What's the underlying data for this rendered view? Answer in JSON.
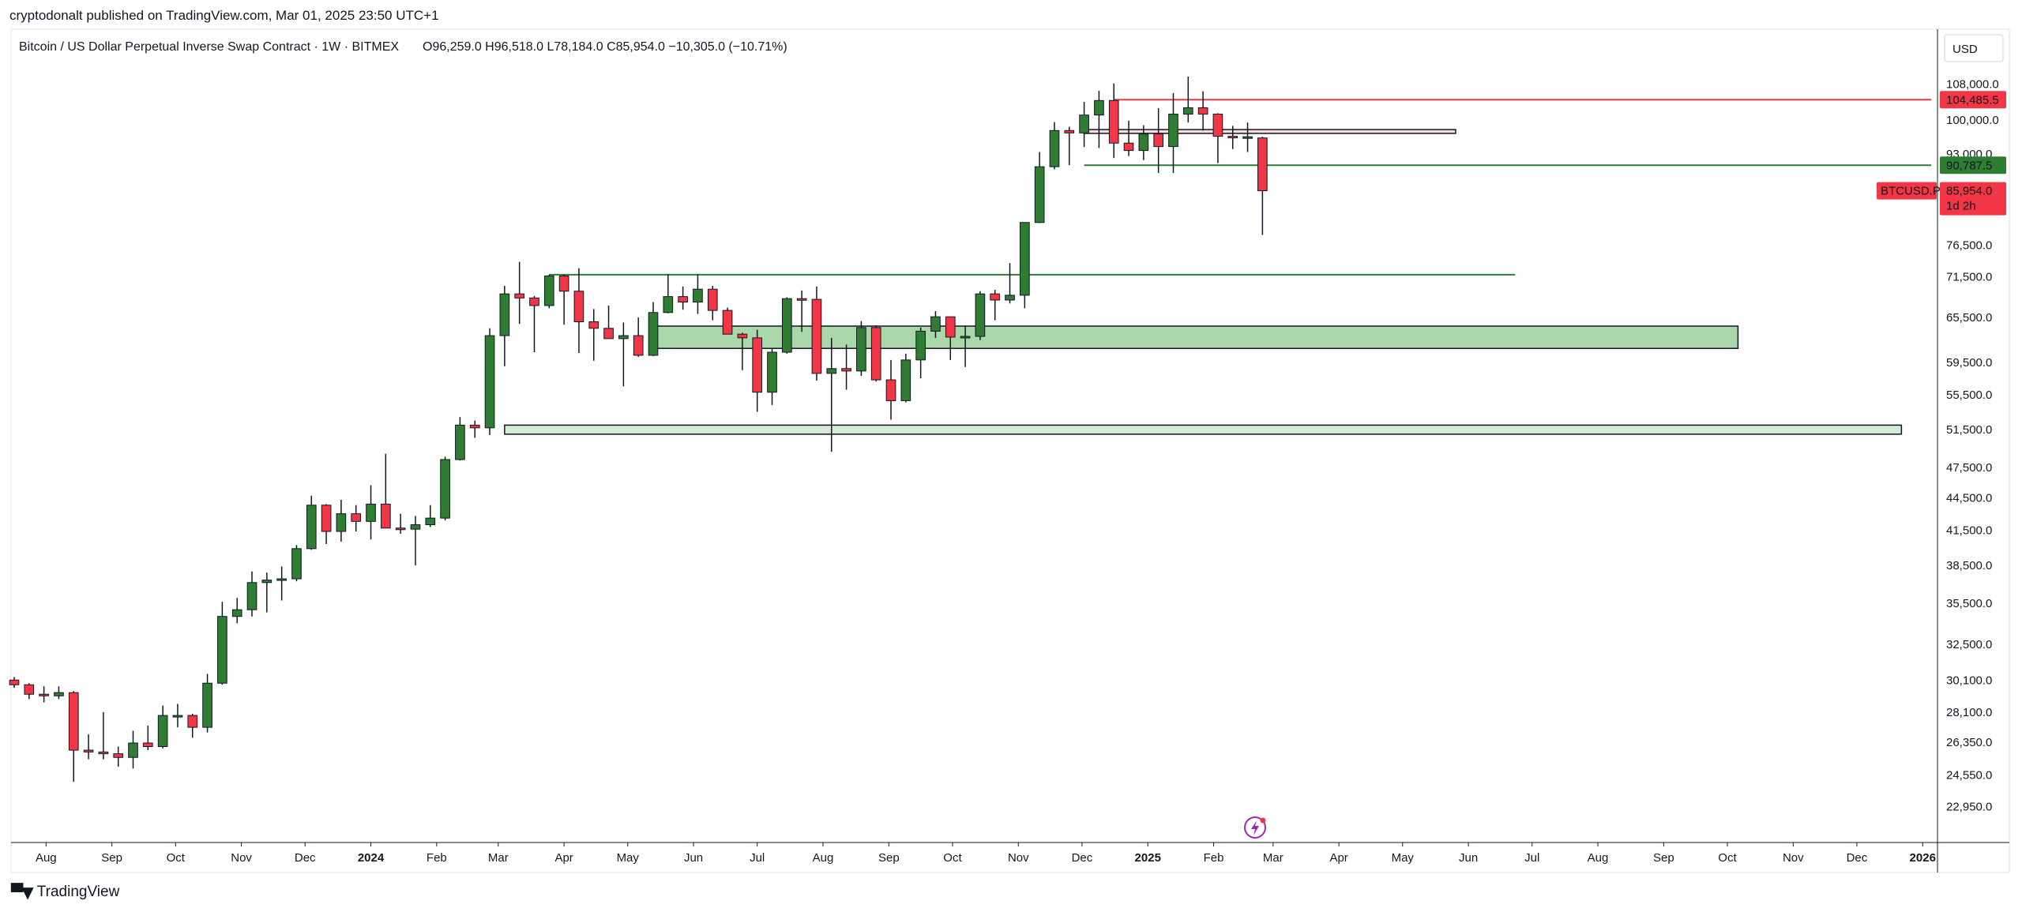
{
  "publish_line": "cryptodonalt published on TradingView.com, Mar 01, 2025 23:50 UTC+1",
  "footer": {
    "brand": "TradingView"
  },
  "chart_data": {
    "type": "candlestick",
    "legend": {
      "symbol": "Bitcoin / US Dollar Perpetual Inverse Swap Contract · 1W · BITMEX",
      "ohlc": "O96,259.0  H96,518.0  L78,184.0  C85,954.0  −10,305.0 (−10.71%)"
    },
    "currency": "USD",
    "y_scale": "log",
    "ylim": [
      21500,
      113000
    ],
    "y_ticks": [
      {
        "v": 108000,
        "label": "108,000.0"
      },
      {
        "v": 100000,
        "label": "100,000.0"
      },
      {
        "v": 93000,
        "label": "93,000.0"
      },
      {
        "v": 76500,
        "label": "76,500.0"
      },
      {
        "v": 71500,
        "label": "71,500.0"
      },
      {
        "v": 65500,
        "label": "65,500.0"
      },
      {
        "v": 59500,
        "label": "59,500.0"
      },
      {
        "v": 55500,
        "label": "55,500.0"
      },
      {
        "v": 51500,
        "label": "51,500.0"
      },
      {
        "v": 47500,
        "label": "47,500.0"
      },
      {
        "v": 44500,
        "label": "44,500.0"
      },
      {
        "v": 41500,
        "label": "41,500.0"
      },
      {
        "v": 38500,
        "label": "38,500.0"
      },
      {
        "v": 35500,
        "label": "35,500.0"
      },
      {
        "v": 32500,
        "label": "32,500.0"
      },
      {
        "v": 30100,
        "label": "30,100.0"
      },
      {
        "v": 28100,
        "label": "28,100.0"
      },
      {
        "v": 26350,
        "label": "26,350.0"
      },
      {
        "v": 24550,
        "label": "24,550.0"
      },
      {
        "v": 22950,
        "label": "22,950.0"
      }
    ],
    "price_tags": [
      {
        "v": 104485.5,
        "label": "104,485.5",
        "color": "#f23645"
      },
      {
        "v": 90787.5,
        "label": "90,787.5",
        "color": "#2e7d32"
      }
    ],
    "last_price": {
      "v": 85954.0,
      "symbol": "BTCUSD.P",
      "label": "85,954.0",
      "countdown": "1d 2h",
      "color": "#f23645"
    },
    "x_start": "2023-07-17",
    "x_end": "2026-01-05",
    "x_ticks": [
      {
        "d": "2023-08-01",
        "label": "Aug",
        "bold": false
      },
      {
        "d": "2023-09-01",
        "label": "Sep",
        "bold": false
      },
      {
        "d": "2023-10-01",
        "label": "Oct",
        "bold": false
      },
      {
        "d": "2023-11-01",
        "label": "Nov",
        "bold": false
      },
      {
        "d": "2023-12-01",
        "label": "Dec",
        "bold": false
      },
      {
        "d": "2024-01-01",
        "label": "2024",
        "bold": true
      },
      {
        "d": "2024-02-01",
        "label": "Feb",
        "bold": false
      },
      {
        "d": "2024-03-01",
        "label": "Mar",
        "bold": false
      },
      {
        "d": "2024-04-01",
        "label": "Apr",
        "bold": false
      },
      {
        "d": "2024-05-01",
        "label": "May",
        "bold": false
      },
      {
        "d": "2024-06-01",
        "label": "Jun",
        "bold": false
      },
      {
        "d": "2024-07-01",
        "label": "Jul",
        "bold": false
      },
      {
        "d": "2024-08-01",
        "label": "Aug",
        "bold": false
      },
      {
        "d": "2024-09-01",
        "label": "Sep",
        "bold": false
      },
      {
        "d": "2024-10-01",
        "label": "Oct",
        "bold": false
      },
      {
        "d": "2024-11-01",
        "label": "Nov",
        "bold": false
      },
      {
        "d": "2024-12-01",
        "label": "Dec",
        "bold": false
      },
      {
        "d": "2025-01-01",
        "label": "2025",
        "bold": true
      },
      {
        "d": "2025-02-01",
        "label": "Feb",
        "bold": false
      },
      {
        "d": "2025-03-01",
        "label": "Mar",
        "bold": false
      },
      {
        "d": "2025-04-01",
        "label": "Apr",
        "bold": false
      },
      {
        "d": "2025-05-01",
        "label": "May",
        "bold": false
      },
      {
        "d": "2025-06-01",
        "label": "Jun",
        "bold": false
      },
      {
        "d": "2025-07-01",
        "label": "Jul",
        "bold": false
      },
      {
        "d": "2025-08-01",
        "label": "Aug",
        "bold": false
      },
      {
        "d": "2025-09-01",
        "label": "Sep",
        "bold": false
      },
      {
        "d": "2025-10-01",
        "label": "Oct",
        "bold": false
      },
      {
        "d": "2025-11-01",
        "label": "Nov",
        "bold": false
      },
      {
        "d": "2025-12-01",
        "label": "Dec",
        "bold": false
      },
      {
        "d": "2026-01-01",
        "label": "2026",
        "bold": true
      }
    ],
    "colors": {
      "up": "#2e7d32",
      "down": "#f23645",
      "wick": "#131722"
    },
    "candles": [
      {
        "d": "2023-07-17",
        "o": 30100,
        "h": 30300,
        "l": 29600,
        "c": 29800
      },
      {
        "d": "2023-07-24",
        "o": 29800,
        "h": 29900,
        "l": 28900,
        "c": 29200
      },
      {
        "d": "2023-07-31",
        "o": 29200,
        "h": 29700,
        "l": 28700,
        "c": 29100
      },
      {
        "d": "2023-08-07",
        "o": 29100,
        "h": 29700,
        "l": 28900,
        "c": 29300
      },
      {
        "d": "2023-08-14",
        "o": 29300,
        "h": 29400,
        "l": 24200,
        "c": 25900
      },
      {
        "d": "2023-08-21",
        "o": 25900,
        "h": 26800,
        "l": 25400,
        "c": 25800
      },
      {
        "d": "2023-08-28",
        "o": 25800,
        "h": 28100,
        "l": 25400,
        "c": 25700
      },
      {
        "d": "2023-09-04",
        "o": 25700,
        "h": 26100,
        "l": 25000,
        "c": 25500
      },
      {
        "d": "2023-09-11",
        "o": 25500,
        "h": 27000,
        "l": 24900,
        "c": 26300
      },
      {
        "d": "2023-09-18",
        "o": 26300,
        "h": 27300,
        "l": 25900,
        "c": 26100
      },
      {
        "d": "2023-09-25",
        "o": 26100,
        "h": 28500,
        "l": 26000,
        "c": 27900
      },
      {
        "d": "2023-10-02",
        "o": 27900,
        "h": 28600,
        "l": 27200,
        "c": 27900
      },
      {
        "d": "2023-10-09",
        "o": 27900,
        "h": 28000,
        "l": 26600,
        "c": 27200
      },
      {
        "d": "2023-10-16",
        "o": 27200,
        "h": 30500,
        "l": 26900,
        "c": 29900
      },
      {
        "d": "2023-10-23",
        "o": 29900,
        "h": 35600,
        "l": 29800,
        "c": 34500
      },
      {
        "d": "2023-10-30",
        "o": 34500,
        "h": 35900,
        "l": 34000,
        "c": 35000
      },
      {
        "d": "2023-11-06",
        "o": 35000,
        "h": 38000,
        "l": 34500,
        "c": 37100
      },
      {
        "d": "2023-11-13",
        "o": 37100,
        "h": 37900,
        "l": 34800,
        "c": 37300
      },
      {
        "d": "2023-11-20",
        "o": 37300,
        "h": 38400,
        "l": 35700,
        "c": 37400
      },
      {
        "d": "2023-11-27",
        "o": 37400,
        "h": 40200,
        "l": 37200,
        "c": 39900
      },
      {
        "d": "2023-12-04",
        "o": 39900,
        "h": 44700,
        "l": 39800,
        "c": 43800
      },
      {
        "d": "2023-12-11",
        "o": 43800,
        "h": 43900,
        "l": 40300,
        "c": 41400
      },
      {
        "d": "2023-12-18",
        "o": 41400,
        "h": 44300,
        "l": 40500,
        "c": 43000
      },
      {
        "d": "2023-12-25",
        "o": 43000,
        "h": 43800,
        "l": 41400,
        "c": 42300
      },
      {
        "d": "2024-01-01",
        "o": 42300,
        "h": 45700,
        "l": 40700,
        "c": 43900
      },
      {
        "d": "2024-01-08",
        "o": 43900,
        "h": 48900,
        "l": 41700,
        "c": 41700
      },
      {
        "d": "2024-01-15",
        "o": 41700,
        "h": 43000,
        "l": 41200,
        "c": 41600
      },
      {
        "d": "2024-01-22",
        "o": 41600,
        "h": 42800,
        "l": 38500,
        "c": 42000
      },
      {
        "d": "2024-01-29",
        "o": 42000,
        "h": 43800,
        "l": 41800,
        "c": 42600
      },
      {
        "d": "2024-02-05",
        "o": 42600,
        "h": 48600,
        "l": 42400,
        "c": 48300
      },
      {
        "d": "2024-02-12",
        "o": 48300,
        "h": 52900,
        "l": 48200,
        "c": 52000
      },
      {
        "d": "2024-02-19",
        "o": 52000,
        "h": 52500,
        "l": 50600,
        "c": 51700
      },
      {
        "d": "2024-02-26",
        "o": 51700,
        "h": 64000,
        "l": 50900,
        "c": 63000
      },
      {
        "d": "2024-03-04",
        "o": 63000,
        "h": 70100,
        "l": 59000,
        "c": 68900
      },
      {
        "d": "2024-03-11",
        "o": 68900,
        "h": 73800,
        "l": 64600,
        "c": 68300
      },
      {
        "d": "2024-03-18",
        "o": 68300,
        "h": 68600,
        "l": 60800,
        "c": 67200
      },
      {
        "d": "2024-03-25",
        "o": 67200,
        "h": 71800,
        "l": 66800,
        "c": 71600
      },
      {
        "d": "2024-04-01",
        "o": 71600,
        "h": 71800,
        "l": 64500,
        "c": 69300
      },
      {
        "d": "2024-04-08",
        "o": 69300,
        "h": 72800,
        "l": 60700,
        "c": 64900
      },
      {
        "d": "2024-04-15",
        "o": 64900,
        "h": 66700,
        "l": 59700,
        "c": 64000
      },
      {
        "d": "2024-04-22",
        "o": 64000,
        "h": 67200,
        "l": 62800,
        "c": 62600
      },
      {
        "d": "2024-04-29",
        "o": 62600,
        "h": 64800,
        "l": 56500,
        "c": 63000
      },
      {
        "d": "2024-05-06",
        "o": 63000,
        "h": 65500,
        "l": 60200,
        "c": 60400
      },
      {
        "d": "2024-05-13",
        "o": 60400,
        "h": 67700,
        "l": 60300,
        "c": 66200
      },
      {
        "d": "2024-05-20",
        "o": 66200,
        "h": 71900,
        "l": 66100,
        "c": 68500
      },
      {
        "d": "2024-05-27",
        "o": 68500,
        "h": 70000,
        "l": 66600,
        "c": 67700
      },
      {
        "d": "2024-06-03",
        "o": 67700,
        "h": 71900,
        "l": 66000,
        "c": 69600
      },
      {
        "d": "2024-06-10",
        "o": 69600,
        "h": 70100,
        "l": 65100,
        "c": 66500
      },
      {
        "d": "2024-06-17",
        "o": 66500,
        "h": 66900,
        "l": 63400,
        "c": 63200
      },
      {
        "d": "2024-06-24",
        "o": 63200,
        "h": 63400,
        "l": 58500,
        "c": 62700
      },
      {
        "d": "2024-07-01",
        "o": 62700,
        "h": 63800,
        "l": 53500,
        "c": 55800
      },
      {
        "d": "2024-07-08",
        "o": 55800,
        "h": 61300,
        "l": 54300,
        "c": 60800
      },
      {
        "d": "2024-07-15",
        "o": 60800,
        "h": 68400,
        "l": 60600,
        "c": 68200
      },
      {
        "d": "2024-07-22",
        "o": 68200,
        "h": 69400,
        "l": 63500,
        "c": 68100
      },
      {
        "d": "2024-07-29",
        "o": 68100,
        "h": 70000,
        "l": 57200,
        "c": 58100
      },
      {
        "d": "2024-08-05",
        "o": 58100,
        "h": 62700,
        "l": 49100,
        "c": 58700
      },
      {
        "d": "2024-08-12",
        "o": 58700,
        "h": 61800,
        "l": 56100,
        "c": 58400
      },
      {
        "d": "2024-08-19",
        "o": 58400,
        "h": 65000,
        "l": 57800,
        "c": 64100
      },
      {
        "d": "2024-08-26",
        "o": 64100,
        "h": 64400,
        "l": 57100,
        "c": 57300
      },
      {
        "d": "2024-09-02",
        "o": 57300,
        "h": 59800,
        "l": 52600,
        "c": 54800
      },
      {
        "d": "2024-09-09",
        "o": 54800,
        "h": 60600,
        "l": 54600,
        "c": 59800
      },
      {
        "d": "2024-09-16",
        "o": 59800,
        "h": 64100,
        "l": 57500,
        "c": 63600
      },
      {
        "d": "2024-09-23",
        "o": 63600,
        "h": 66400,
        "l": 62700,
        "c": 65600
      },
      {
        "d": "2024-09-30",
        "o": 65600,
        "h": 65000,
        "l": 59800,
        "c": 62800
      },
      {
        "d": "2024-10-07",
        "o": 62800,
        "h": 64400,
        "l": 58900,
        "c": 62900
      },
      {
        "d": "2024-10-14",
        "o": 62900,
        "h": 69300,
        "l": 62400,
        "c": 68900
      },
      {
        "d": "2024-10-21",
        "o": 68900,
        "h": 69500,
        "l": 65100,
        "c": 68000
      },
      {
        "d": "2024-10-28",
        "o": 68000,
        "h": 73600,
        "l": 67500,
        "c": 68700
      },
      {
        "d": "2024-11-04",
        "o": 68700,
        "h": 80300,
        "l": 66800,
        "c": 80300
      },
      {
        "d": "2024-11-11",
        "o": 80300,
        "h": 93400,
        "l": 80200,
        "c": 90500
      },
      {
        "d": "2024-11-18",
        "o": 90500,
        "h": 99600,
        "l": 90000,
        "c": 97800
      },
      {
        "d": "2024-11-25",
        "o": 97800,
        "h": 98600,
        "l": 90800,
        "c": 97300
      },
      {
        "d": "2024-12-02",
        "o": 97300,
        "h": 104000,
        "l": 94400,
        "c": 101100
      },
      {
        "d": "2024-12-09",
        "o": 101100,
        "h": 106500,
        "l": 94200,
        "c": 104300
      },
      {
        "d": "2024-12-16",
        "o": 104300,
        "h": 108200,
        "l": 92200,
        "c": 95200
      },
      {
        "d": "2024-12-23",
        "o": 95200,
        "h": 99900,
        "l": 92600,
        "c": 93700
      },
      {
        "d": "2024-12-30",
        "o": 93700,
        "h": 98900,
        "l": 91800,
        "c": 97100
      },
      {
        "d": "2025-01-06",
        "o": 97100,
        "h": 102600,
        "l": 89300,
        "c": 94500
      },
      {
        "d": "2025-01-13",
        "o": 94500,
        "h": 106000,
        "l": 89300,
        "c": 101300
      },
      {
        "d": "2025-01-20",
        "o": 101300,
        "h": 109800,
        "l": 99500,
        "c": 102700
      },
      {
        "d": "2025-01-27",
        "o": 102700,
        "h": 106400,
        "l": 97800,
        "c": 101300
      },
      {
        "d": "2025-02-03",
        "o": 101300,
        "h": 101500,
        "l": 91200,
        "c": 96600
      },
      {
        "d": "2025-02-10",
        "o": 96600,
        "h": 98800,
        "l": 94000,
        "c": 96300
      },
      {
        "d": "2025-02-17",
        "o": 96300,
        "h": 99500,
        "l": 93400,
        "c": 96500
      },
      {
        "d": "2025-02-24",
        "o": 96259,
        "h": 96518,
        "l": 78184,
        "c": 85954
      }
    ],
    "zones": [
      {
        "from": "2024-03-04",
        "to": "2025-12-22",
        "low": 51000,
        "high": 52000,
        "fill": "#c8e6c9",
        "stroke": "#131722",
        "opacity": 0.8
      },
      {
        "from": "2024-05-13",
        "to": "2025-10-06",
        "low": 61300,
        "high": 64300,
        "fill": "#a5d6a7",
        "stroke": "#131722",
        "opacity": 0.95
      },
      {
        "from": "2024-12-02",
        "to": "2025-05-26",
        "low": 97200,
        "high": 98000,
        "fill": "#f8d7da",
        "stroke": "#131722",
        "opacity": 0.9
      }
    ],
    "levels": [
      {
        "from": "2024-12-16",
        "to": "2026-01-05",
        "v": 104485.5,
        "color": "#f23645",
        "width": 2
      },
      {
        "from": "2024-12-02",
        "to": "2026-01-05",
        "v": 90787.5,
        "color": "#2e7d32",
        "width": 2
      },
      {
        "from": "2024-03-25",
        "to": "2025-06-23",
        "v": 71800,
        "color": "#2e7d32",
        "width": 2
      }
    ]
  }
}
